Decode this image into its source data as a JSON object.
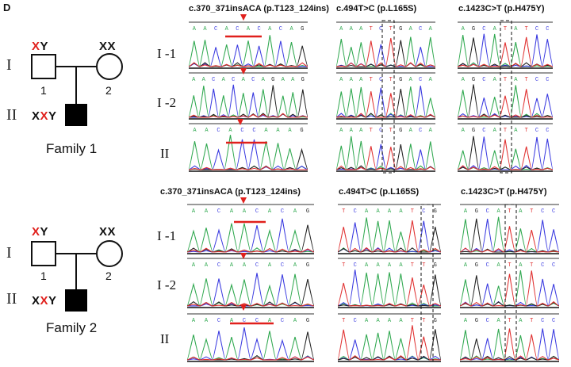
{
  "panel_label": "D",
  "families": [
    {
      "title": "Family 1",
      "generation_labels": [
        "I",
        "II"
      ],
      "father": {
        "karyotype_plain": "Y",
        "karyotype_red": "X",
        "number": "1"
      },
      "mother": {
        "karyotype": "XX",
        "number": "2"
      },
      "proband": {
        "karyotype_a": "X",
        "karyotype_red": "X",
        "karyotype_b": "Y"
      }
    },
    {
      "title": "Family 2",
      "generation_labels": [
        "I",
        "II"
      ],
      "father": {
        "karyotype_plain": "Y",
        "karyotype_red": "X",
        "number": "1"
      },
      "mother": {
        "karyotype": "XX",
        "number": "2"
      },
      "proband": {
        "karyotype_a": "X",
        "karyotype_red": "X",
        "karyotype_b": "Y"
      }
    }
  ],
  "mutations": {
    "family1": [
      "c.370_371insACA (p.T123_124ins)",
      "c.494T>C (p.L165S)",
      "c.1423C>T (p.H475Y)"
    ],
    "family2": [
      "c.370_371insACA (p.T123_124ins)",
      "c.494T>C (p.L165S)",
      "c.1423C>T (p.H475Y)"
    ]
  },
  "row_labels": [
    "I -1",
    "I -2",
    "II"
  ],
  "sequences": {
    "f1_a": [
      "AACACACACAG",
      "AACACACAGAAG",
      "AACACCAAAG"
    ],
    "f1_b": [
      "AAATCTGACA",
      "AAATCTGACA",
      "AAATCTGACA"
    ],
    "f1_c": [
      "AGCATATCC",
      "AGCATATCC",
      "AGCATATCC"
    ],
    "f2_a": [
      "AACAACACAG",
      "AACAACACAG",
      "AACACCACAG"
    ],
    "f2_b": [
      "TCAAAATCG",
      "TCAAAATTG",
      "TCAAAATTG"
    ],
    "f2_c": [
      "AGCATATCC",
      "AGCATATCC",
      "AGCATATCC"
    ]
  },
  "colors": {
    "A": "#2fa84f",
    "C": "#3a3ae0",
    "G": "#222222",
    "T": "#e03030",
    "marker": "#e0201c"
  }
}
